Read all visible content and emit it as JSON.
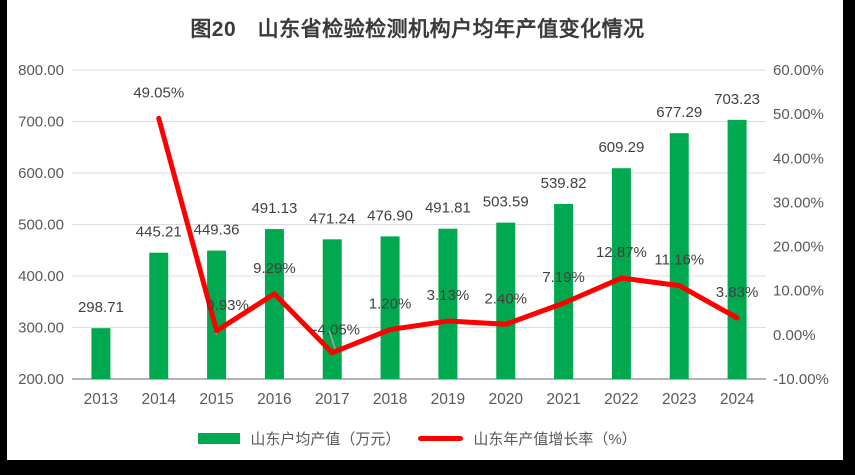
{
  "page": {
    "background": "#FFFFFF",
    "letterbox_color": "#000000"
  },
  "chart_data": {
    "type": "combo",
    "title": "图20　山东省检验检测机构户均年产值变化情况",
    "categories": [
      "2013",
      "2014",
      "2015",
      "2016",
      "2017",
      "2018",
      "2019",
      "2020",
      "2021",
      "2022",
      "2023",
      "2024"
    ],
    "series": [
      {
        "name": "山东户均产值（万元）",
        "chart_type": "bar",
        "axis": "left",
        "color": "#00A94F",
        "values": [
          298.71,
          445.21,
          449.36,
          491.13,
          471.24,
          476.9,
          491.81,
          503.59,
          539.82,
          609.29,
          677.29,
          703.23
        ],
        "data_labels": [
          "298.71",
          "445.21",
          "449.36",
          "491.13",
          "471.24",
          "476.90",
          "491.81",
          "503.59",
          "539.82",
          "609.29",
          "677.29",
          "703.23"
        ]
      },
      {
        "name": "山东年产值增长率（%）",
        "chart_type": "line",
        "axis": "right",
        "color": "#FE0000",
        "values": [
          null,
          49.05,
          0.93,
          9.29,
          -4.05,
          1.2,
          3.13,
          2.4,
          7.19,
          12.87,
          11.16,
          3.83
        ],
        "data_labels": [
          null,
          "49.05%",
          "0.93%",
          "9.29%",
          "-4.05%",
          "1.20%",
          "3.13%",
          "2.40%",
          "7.19%",
          "12.87%",
          "11.16%",
          "3.83%"
        ]
      }
    ],
    "left_axis": {
      "min": 200,
      "max": 800,
      "step": 100,
      "tick_labels": [
        "800.00",
        "700.00",
        "600.00",
        "500.00",
        "400.00",
        "300.00",
        "200.00"
      ]
    },
    "right_axis": {
      "min": -10,
      "max": 60,
      "step": 10,
      "tick_labels": [
        "60.00%",
        "50.00%",
        "40.00%",
        "30.00%",
        "20.00%",
        "10.00%",
        "0.00%",
        "-10.00%"
      ]
    },
    "grid": "horizontal",
    "legend_position": "bottom",
    "colors": {
      "grid": "#DCDCDC",
      "axis_line": "#B3B3B3",
      "leader_line": "#A6A6A6",
      "data_label": "#404040",
      "axis_label": "#595959",
      "title": "#3B3B3B"
    }
  }
}
